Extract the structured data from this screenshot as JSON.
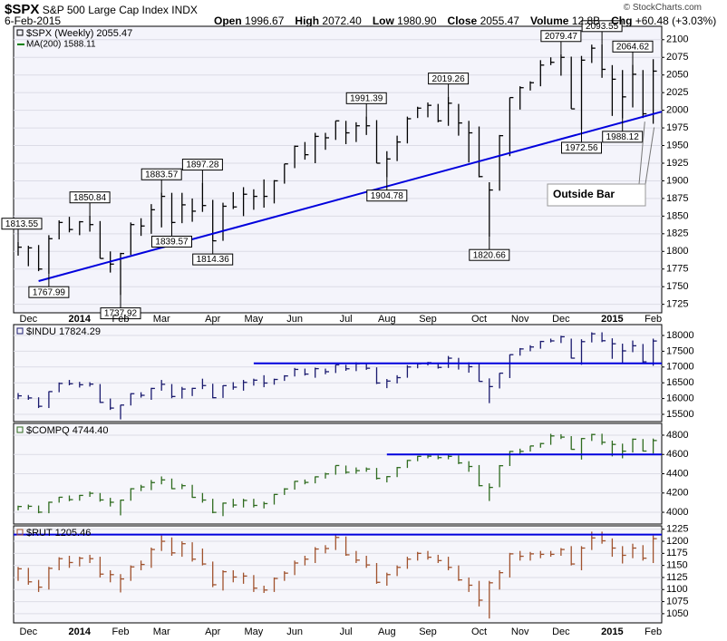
{
  "header": {
    "symbol": "$SPX",
    "name": "S&P 500 Large Cap Index",
    "exchange": "INDX",
    "date": "6-Feb-2015",
    "copyright": "© StockCharts.com",
    "stats": [
      {
        "label": "Open",
        "value": "1996.67"
      },
      {
        "label": "High",
        "value": "2072.40"
      },
      {
        "label": "Low",
        "value": "1980.90"
      },
      {
        "label": "Close",
        "value": "2055.47"
      },
      {
        "label": "Volume",
        "value": "12.8B"
      },
      {
        "label": "Chg",
        "value": "+60.48 (+3.03%)"
      }
    ]
  },
  "x_labels": [
    "Dec",
    "2014",
    "Feb",
    "Mar",
    "Apr",
    "May",
    "Jun",
    "Jul",
    "Aug",
    "Sep",
    "Oct",
    "Nov",
    "Dec",
    "2015",
    "Feb"
  ],
  "chart_data": [
    {
      "type": "ohlc",
      "legend": "$SPX (Weekly) 2055.47",
      "ma_legend": "MA(200) 1588.11",
      "ma_color": "#008000",
      "color": "#000000",
      "grid": true,
      "annotation": "Outside Bar",
      "trendline": [
        1758,
        1998
      ],
      "line_color": "#0000dd",
      "ylim": [
        1713,
        2119
      ],
      "yticks": [
        1725,
        1750,
        1775,
        1800,
        1825,
        1850,
        1875,
        1900,
        1925,
        1950,
        1975,
        2000,
        2025,
        2050,
        2075,
        2100
      ],
      "high": [
        1813.55,
        1808,
        1809,
        1823,
        1844,
        1849,
        1843,
        1850.84,
        1843,
        1800,
        1798,
        1841,
        1847,
        1867,
        1883.57,
        1883,
        1883,
        1875,
        1897.28,
        1873,
        1869,
        1884,
        1891,
        1888,
        1902,
        1901,
        1924,
        1950,
        1955,
        1968,
        1968,
        1985,
        1985,
        1983,
        1991.39,
        1986,
        1942,
        1964,
        1991,
        2005,
        2011,
        2009,
        2019.26,
        2009,
        1985,
        1977,
        1898,
        1965,
        2018,
        2034,
        2041,
        2071,
        2075,
        2079.47,
        2076,
        2077,
        2093,
        2093.55,
        2064,
        2057,
        2064.62,
        2057,
        2072.4
      ],
      "low": [
        1794,
        1779,
        1772,
        1767.99,
        1817,
        1827,
        1823,
        1828,
        1790,
        1770,
        1737.92,
        1795,
        1822,
        1825,
        1834,
        1839.57,
        1840,
        1842,
        1856,
        1814.36,
        1815,
        1860,
        1850,
        1859,
        1862,
        1868,
        1896,
        1918,
        1930,
        1925,
        1944,
        1958,
        1952,
        1955,
        1965,
        1925,
        1904.78,
        1928,
        1953,
        1989,
        1990,
        1983,
        1978,
        1964,
        1926,
        1905,
        1820.66,
        1886,
        1935,
        2001,
        2028,
        2034,
        2064,
        2049,
        2002,
        1972.56,
        2067,
        2046,
        1992,
        1988.12,
        2004,
        1989,
        1980.9
      ],
      "close": [
        1806,
        1805,
        1775,
        1818,
        1841,
        1831,
        1842,
        1838,
        1790,
        1782,
        1797,
        1838,
        1836,
        1859,
        1878,
        1841,
        1866,
        1857,
        1865,
        1815,
        1864,
        1863,
        1881,
        1878,
        1878,
        1900,
        1924,
        1949,
        1937,
        1963,
        1961,
        1985,
        1968,
        1978,
        1978,
        1925,
        1931,
        1955,
        1988,
        2003,
        2007,
        1985,
        2010,
        1982,
        1968,
        1906,
        1887,
        1964,
        2018,
        2032,
        2039,
        2064,
        2068,
        2075,
        2002,
        2071,
        2088,
        2058,
        2044,
        2019,
        2051,
        1995,
        2055.47
      ]
    },
    {
      "type": "ohlc",
      "legend": "$INDU 17824.29",
      "color": "#1a1a6e",
      "grid": true,
      "hline": 17115,
      "line_color": "#0000dd",
      "ylim": [
        15270,
        18345
      ],
      "yticks": [
        15500,
        16000,
        16500,
        17000,
        17500,
        18000
      ],
      "high": [
        16174,
        16110,
        16040,
        16230,
        16510,
        16590,
        16530,
        16520,
        16460,
        16000,
        15800,
        16170,
        16200,
        16340,
        16590,
        16460,
        16370,
        16340,
        16630,
        16470,
        16420,
        16520,
        16590,
        16630,
        16740,
        16630,
        16740,
        16970,
        16950,
        16980,
        16950,
        17075,
        17070,
        17150,
        17110,
        16990,
        16620,
        16740,
        17060,
        17110,
        17160,
        17140,
        17350,
        17290,
        17150,
        17100,
        16640,
        16810,
        17400,
        17600,
        17690,
        17830,
        17900,
        17990,
        17900,
        17880,
        18100,
        18100,
        17910,
        17740,
        17840,
        17730,
        17900
      ],
      "low": [
        15980,
        15960,
        15700,
        15700,
        16200,
        16420,
        16350,
        16380,
        15860,
        15640,
        15340,
        15780,
        16030,
        15960,
        16250,
        16010,
        16000,
        16080,
        16300,
        16010,
        16020,
        16280,
        16250,
        16410,
        16360,
        16440,
        16560,
        16700,
        16730,
        16660,
        16770,
        16810,
        16880,
        16870,
        16910,
        16460,
        16330,
        16480,
        16660,
        16960,
        17050,
        16950,
        16970,
        16920,
        16820,
        16540,
        15855,
        16320,
        16650,
        17360,
        17500,
        17580,
        17780,
        17760,
        17270,
        17070,
        17780,
        17790,
        17260,
        17140,
        17470,
        17100,
        17040
      ],
      "close": [
        16086,
        16020,
        15755,
        16221,
        16479,
        16469,
        16437,
        16458,
        15879,
        15699,
        15794,
        16154,
        16103,
        16321,
        16452,
        16065,
        16302,
        16323,
        16412,
        16027,
        16409,
        16361,
        16513,
        16583,
        16492,
        16606,
        16717,
        16924,
        16776,
        16948,
        16851,
        17068,
        16944,
        17100,
        16961,
        16493,
        16554,
        16663,
        17001,
        17098,
        17138,
        16988,
        17280,
        17113,
        17009,
        16544,
        16380,
        16805,
        17391,
        17573,
        17635,
        17810,
        17828,
        17959,
        17281,
        17805,
        18053,
        17833,
        17737,
        17512,
        17673,
        17165,
        17824.29
      ]
    },
    {
      "type": "ohlc",
      "legend": "$COMPQ 4744.40",
      "color": "#2e6b1e",
      "grid": true,
      "hline": 4600,
      "line_color": "#0000dd",
      "ylim": [
        3878,
        4922
      ],
      "yticks": [
        4000,
        4200,
        4400,
        4600,
        4800
      ],
      "high": [
        4069,
        4080,
        4070,
        4110,
        4160,
        4174,
        4180,
        4215,
        4200,
        4150,
        4130,
        4250,
        4285,
        4335,
        4372,
        4350,
        4295,
        4285,
        4200,
        4140,
        4100,
        4140,
        4140,
        4140,
        4110,
        4190,
        4250,
        4325,
        4340,
        4372,
        4410,
        4486,
        4485,
        4465,
        4465,
        4460,
        4375,
        4470,
        4543,
        4585,
        4595,
        4590,
        4600,
        4590,
        4530,
        4490,
        4300,
        4490,
        4636,
        4660,
        4690,
        4720,
        4814,
        4810,
        4790,
        4770,
        4814,
        4815,
        4743,
        4712,
        4765,
        4760,
        4765
      ],
      "low": [
        4020,
        4030,
        3990,
        3990,
        4100,
        4115,
        4120,
        4160,
        4110,
        4060,
        3968,
        4120,
        4220,
        4230,
        4290,
        4240,
        4240,
        4150,
        4100,
        3990,
        3960,
        4050,
        4050,
        4050,
        4040,
        4080,
        4180,
        4235,
        4290,
        4300,
        4350,
        4390,
        4400,
        4400,
        4420,
        4340,
        4310,
        4365,
        4460,
        4530,
        4560,
        4550,
        4550,
        4500,
        4420,
        4270,
        4117,
        4260,
        4480,
        4600,
        4630,
        4670,
        4700,
        4760,
        4650,
        4547,
        4740,
        4700,
        4580,
        4560,
        4620,
        4630,
        4610
      ],
      "close": [
        4060,
        4062,
        4001,
        4104,
        4156,
        4131,
        4175,
        4197,
        4128,
        4104,
        4126,
        4244,
        4263,
        4308,
        4336,
        4245,
        4276,
        4155,
        4127,
        3999,
        4095,
        4075,
        4123,
        4071,
        4090,
        4185,
        4242,
        4321,
        4310,
        4368,
        4398,
        4485,
        4415,
        4432,
        4449,
        4352,
        4370,
        4464,
        4538,
        4580,
        4582,
        4567,
        4580,
        4512,
        4475,
        4276,
        4258,
        4483,
        4631,
        4632,
        4688,
        4713,
        4792,
        4780,
        4653,
        4765,
        4807,
        4726,
        4704,
        4634,
        4758,
        4635,
        4744.4
      ]
    },
    {
      "type": "ohlc",
      "legend": "$RUT 1205.46",
      "color": "#a0522d",
      "grid": true,
      "hline": 1214,
      "line_color": "#0000dd",
      "ylim": [
        1031,
        1232
      ],
      "yticks": [
        1050,
        1075,
        1100,
        1125,
        1150,
        1175,
        1200,
        1225
      ],
      "high": [
        1147,
        1145,
        1120,
        1147,
        1167,
        1170,
        1168,
        1172,
        1168,
        1140,
        1132,
        1150,
        1160,
        1187,
        1212,
        1208,
        1200,
        1198,
        1185,
        1158,
        1140,
        1140,
        1135,
        1130,
        1108,
        1125,
        1138,
        1160,
        1170,
        1188,
        1192,
        1213,
        1210,
        1180,
        1170,
        1155,
        1135,
        1150,
        1168,
        1178,
        1180,
        1172,
        1168,
        1150,
        1125,
        1118,
        1118,
        1140,
        1176,
        1180,
        1178,
        1180,
        1180,
        1186,
        1190,
        1190,
        1220,
        1220,
        1206,
        1190,
        1195,
        1192,
        1212
      ],
      "low": [
        1118,
        1110,
        1095,
        1100,
        1140,
        1145,
        1148,
        1155,
        1125,
        1115,
        1094,
        1118,
        1140,
        1145,
        1180,
        1170,
        1168,
        1158,
        1150,
        1105,
        1098,
        1115,
        1112,
        1095,
        1093,
        1095,
        1118,
        1130,
        1150,
        1155,
        1175,
        1182,
        1170,
        1155,
        1145,
        1112,
        1108,
        1128,
        1143,
        1160,
        1162,
        1155,
        1140,
        1118,
        1095,
        1065,
        1040,
        1100,
        1125,
        1160,
        1160,
        1165,
        1168,
        1170,
        1150,
        1140,
        1182,
        1195,
        1168,
        1154,
        1165,
        1160,
        1155
      ],
      "close": [
        1143,
        1116,
        1105,
        1144,
        1164,
        1156,
        1165,
        1164,
        1132,
        1131,
        1122,
        1147,
        1152,
        1183,
        1200,
        1176,
        1195,
        1163,
        1153,
        1110,
        1137,
        1126,
        1128,
        1103,
        1099,
        1123,
        1134,
        1155,
        1163,
        1184,
        1185,
        1208,
        1172,
        1161,
        1151,
        1115,
        1131,
        1146,
        1163,
        1175,
        1167,
        1160,
        1146,
        1120,
        1109,
        1078,
        1114,
        1135,
        1174,
        1169,
        1174,
        1173,
        1173,
        1183,
        1153,
        1186,
        1207,
        1201,
        1186,
        1171,
        1186,
        1165,
        1205.46
      ]
    }
  ]
}
